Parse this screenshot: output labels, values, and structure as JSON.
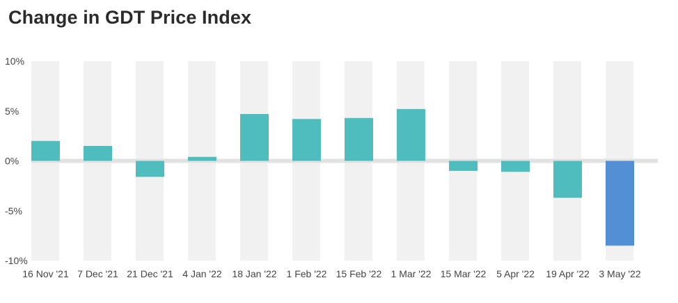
{
  "chart_data": {
    "type": "bar",
    "title": "Change in GDT Price Index",
    "xlabel": "",
    "ylabel": "",
    "categories": [
      "16 Nov '21",
      "7 Dec '21",
      "21 Dec '21",
      "4 Jan '22",
      "18 Jan '22",
      "1 Feb '22",
      "15 Feb '22",
      "1 Mar '22",
      "15 Mar '22",
      "5 Apr '22",
      "19 Apr '22",
      "3 May '22"
    ],
    "values": [
      2.0,
      1.5,
      -1.6,
      0.4,
      4.7,
      4.2,
      4.3,
      5.2,
      -1.0,
      -1.1,
      -3.7,
      -8.5
    ],
    "ylim": [
      -10,
      10
    ],
    "yticks": [
      10,
      5,
      0,
      -5,
      -10
    ],
    "ytick_labels": [
      "10%",
      "5%",
      "0%",
      "-5%",
      "-10%"
    ],
    "grid": false,
    "colors": {
      "bar": "#4fbdbe",
      "highlight_bar": "#528fd5",
      "band": "#f1f1f1",
      "baseline": "#e2e2e2"
    },
    "highlight_index": 11
  }
}
